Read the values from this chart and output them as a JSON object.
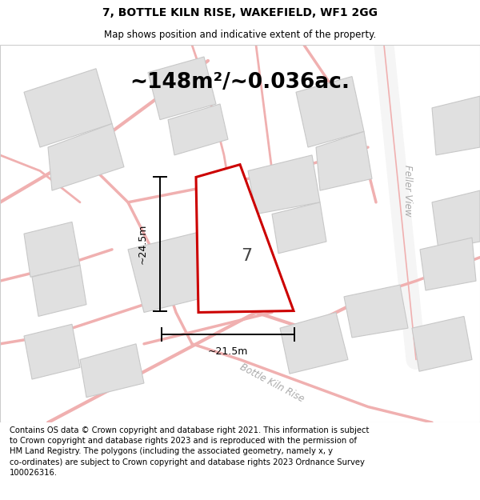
{
  "title": "7, BOTTLE KILN RISE, WAKEFIELD, WF1 2GG",
  "subtitle": "Map shows position and indicative extent of the property.",
  "area_text": "~148m²/~0.036ac.",
  "dim_width": "~21.5m",
  "dim_height": "~24.5m",
  "label_number": "7",
  "footer_text": "Contains OS data © Crown copyright and database right 2021. This information is subject to Crown copyright and database rights 2023 and is reproduced with the permission of HM Land Registry. The polygons (including the associated geometry, namely x, y co-ordinates) are subject to Crown copyright and database rights 2023 Ordnance Survey 100026316.",
  "bg_color": "#ffffff",
  "map_bg": "#f8f8f8",
  "plot_fill": "#ffffff",
  "plot_edge": "#cc0000",
  "road_color": "#f0b0b0",
  "building_color": "#e0e0e0",
  "building_edge": "#c8c8c8",
  "street_label_color": "#aaaaaa",
  "title_fontsize": 10,
  "subtitle_fontsize": 8.5,
  "area_fontsize": 19,
  "dim_fontsize": 9,
  "label_fontsize": 16,
  "footer_fontsize": 7.2
}
